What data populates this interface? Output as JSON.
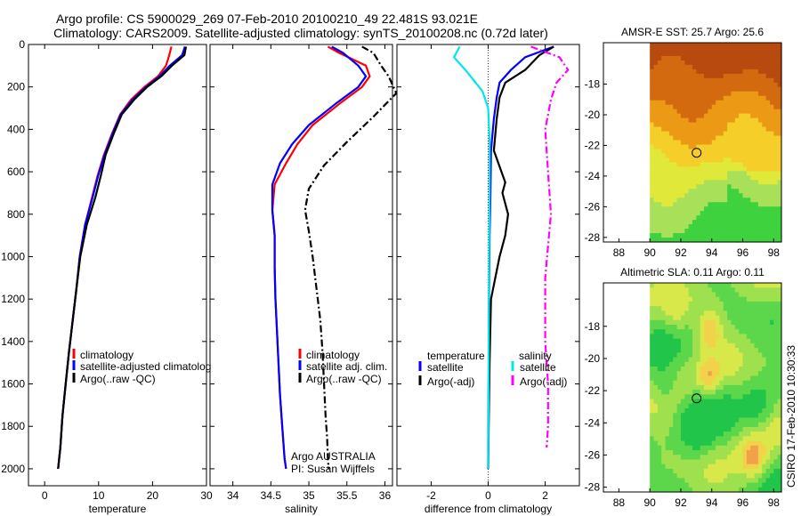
{
  "title": {
    "line1": "Argo profile: CS 5900029_269 07-Feb-2010 20100210_49 22.481S 93.021E",
    "line2": "Climatology: CARS2009. Satellite-adjusted climatology: synTS_20100208.nc (0.72d later)"
  },
  "credit": "CSIRO 17-Feb-2010 10:30:33",
  "chart_data": [
    {
      "id": "temperature",
      "type": "line",
      "xlabel": "temperature",
      "ylabel": "",
      "xlim": [
        -3,
        30
      ],
      "ylim": [
        0,
        2080
      ],
      "y_inverted": true,
      "xticks": [
        0,
        10,
        20,
        30
      ],
      "yticks": [
        0,
        200,
        400,
        600,
        800,
        1000,
        1200,
        1400,
        1600,
        1800,
        2000
      ],
      "legend": {
        "entries": [
          "climatology",
          "satellite-adjusted climatolog",
          "Argo(..raw -QC)"
        ],
        "position": "lower-right"
      },
      "series": [
        {
          "name": "climatology",
          "color": "#ff0000",
          "x": [
            23.5,
            23.1,
            22.5,
            21.0,
            18.5,
            16.0,
            14.0,
            12.5,
            11.0,
            9.8,
            8.8,
            7.5,
            6.5,
            5.9,
            5.2,
            4.5,
            3.9,
            3.3,
            2.9,
            2.5
          ],
          "y": [
            10,
            50,
            100,
            150,
            200,
            260,
            330,
            420,
            520,
            620,
            720,
            850,
            1000,
            1150,
            1300,
            1450,
            1600,
            1750,
            1900,
            2000
          ]
        },
        {
          "name": "satellite-adjusted climatolog",
          "color": "#0000ff",
          "x": [
            26.0,
            25.5,
            23.2,
            21.3,
            18.8,
            16.3,
            14.1,
            12.6,
            11.1,
            9.9,
            8.9,
            7.5,
            6.5,
            5.9,
            5.2,
            4.5,
            3.9,
            3.3,
            2.9,
            2.5
          ],
          "y": [
            10,
            50,
            100,
            150,
            200,
            260,
            330,
            420,
            520,
            620,
            720,
            850,
            1000,
            1150,
            1300,
            1450,
            1600,
            1750,
            1900,
            2000
          ]
        },
        {
          "name": "Argo(..raw -QC)",
          "color": "#000000",
          "x": [
            26.2,
            25.9,
            23.6,
            21.6,
            19.0,
            16.6,
            14.3,
            12.8,
            11.3,
            10.4,
            9.4,
            7.8,
            6.6,
            5.9,
            5.2,
            4.5,
            3.9,
            3.3,
            2.9,
            2.5
          ],
          "y": [
            10,
            50,
            100,
            150,
            200,
            260,
            330,
            420,
            520,
            620,
            720,
            850,
            1000,
            1150,
            1300,
            1450,
            1600,
            1750,
            1900,
            2000
          ]
        }
      ]
    },
    {
      "id": "salinity",
      "type": "line",
      "xlabel": "salinity",
      "ylabel": "",
      "xlim": [
        33.7,
        36.1
      ],
      "ylim": [
        0,
        2080
      ],
      "y_inverted": true,
      "xticks": [
        34,
        34.5,
        35,
        35.5,
        36
      ],
      "legend": {
        "entries": [
          "climatology",
          "satellite adj. clim.",
          "Argo(..raw -QC)"
        ],
        "position": "lower-right"
      },
      "annotation": [
        "Argo AUSTRALIA",
        "PI: Susan Wijffels"
      ],
      "series": [
        {
          "name": "climatology",
          "color": "#ff0000",
          "x": [
            35.25,
            35.4,
            35.75,
            35.8,
            35.7,
            35.4,
            35.05,
            34.85,
            34.7,
            34.55,
            34.52,
            34.55,
            34.55,
            34.56,
            34.58,
            34.6,
            34.62,
            34.65,
            34.68,
            34.7
          ],
          "y": [
            10,
            40,
            100,
            150,
            200,
            280,
            380,
            470,
            560,
            660,
            780,
            900,
            1050,
            1200,
            1350,
            1500,
            1650,
            1800,
            1950,
            2000
          ]
        },
        {
          "name": "satellite adj. clim.",
          "color": "#0000ff",
          "x": [
            35.3,
            35.45,
            35.65,
            35.75,
            35.65,
            35.35,
            35.0,
            34.78,
            34.62,
            34.52,
            34.52,
            34.55,
            34.55,
            34.56,
            34.58,
            34.6,
            34.62,
            34.65,
            34.68,
            34.7
          ],
          "y": [
            10,
            40,
            100,
            150,
            200,
            280,
            380,
            470,
            560,
            660,
            780,
            900,
            1050,
            1200,
            1350,
            1500,
            1650,
            1800,
            1950,
            2000
          ]
        },
        {
          "name": "Argo(..raw -QC)",
          "color": "#000000",
          "dash": true,
          "x": [
            35.7,
            35.85,
            35.95,
            36.05,
            36.15,
            35.85,
            35.5,
            35.2,
            35.0,
            34.95,
            35.0,
            35.05,
            35.1,
            35.15,
            35.18,
            35.2,
            35.22,
            35.24,
            35.25,
            35.26
          ],
          "y": [
            10,
            40,
            100,
            150,
            230,
            340,
            460,
            570,
            680,
            780,
            880,
            1000,
            1150,
            1300,
            1450,
            1600,
            1750,
            1850,
            1950,
            2000
          ]
        }
      ]
    },
    {
      "id": "difference",
      "type": "line",
      "xlabel": "difference from climatology",
      "ylabel": "",
      "xlim": [
        -3.2,
        3.2
      ],
      "ylim": [
        0,
        2080
      ],
      "y_inverted": true,
      "xticks": [
        -2,
        0,
        2
      ],
      "legend": {
        "entries": [
          "temperature",
          "satellite",
          "Argo(-adj)",
          "salinity",
          "satellite",
          "Argo(-adj)"
        ],
        "position": "lower"
      },
      "series": [
        {
          "name": "temperature satellite",
          "color": "#0000ff",
          "x": [
            2.3,
            1.3,
            0.8,
            0.4,
            0.3,
            0.2,
            0.1,
            0.08,
            0.05,
            0.03,
            0.02,
            0.01,
            0.0,
            0.0
          ],
          "y": [
            10,
            60,
            120,
            180,
            250,
            350,
            500,
            700,
            900,
            1200,
            1500,
            1700,
            1900,
            2000
          ]
        },
        {
          "name": "temperature Argo(-adj)",
          "color": "#000000",
          "x": [
            2.3,
            1.8,
            1.3,
            0.6,
            0.4,
            0.3,
            0.2,
            0.6,
            0.5,
            0.7,
            0.6,
            0.4,
            0.1,
            0.05,
            0.02,
            0.0
          ],
          "y": [
            10,
            50,
            120,
            180,
            250,
            350,
            500,
            650,
            700,
            800,
            900,
            1000,
            1200,
            1500,
            1800,
            2000
          ]
        },
        {
          "name": "salinity satellite",
          "color": "#00e5ee",
          "x": [
            -1.0,
            -1.2,
            -0.8,
            -0.5,
            -0.2,
            0.0,
            0.05,
            0.05,
            0.03,
            0.02,
            0.01,
            0.0
          ],
          "y": [
            10,
            60,
            120,
            170,
            220,
            300,
            450,
            700,
            1000,
            1400,
            1800,
            2000
          ]
        },
        {
          "name": "salinity Argo(-adj)",
          "color": "#ff00ff",
          "dash": true,
          "x": [
            1.5,
            2.5,
            2.8,
            2.4,
            2.2,
            2.0,
            2.1,
            2.2,
            2.1,
            2.0,
            2.0,
            2.1,
            2.1,
            2.05
          ],
          "y": [
            10,
            60,
            120,
            180,
            260,
            400,
            600,
            800,
            950,
            1100,
            1400,
            1600,
            1800,
            1900
          ]
        }
      ]
    },
    {
      "id": "sst-map",
      "type": "heatmap",
      "title": "AMSR-E SST: 25.7  Argo: 25.6",
      "xlim": [
        87,
        98.5
      ],
      "ylim": [
        -28.3,
        -15.3
      ],
      "xticks": [
        88,
        90,
        92,
        94,
        96,
        98
      ],
      "yticks": [
        -18,
        -20,
        -22,
        -24,
        -26,
        -28
      ],
      "argo_marker": {
        "lon": 93.02,
        "lat": -22.48
      },
      "palette": [
        "#b84a10",
        "#d46a10",
        "#ec9a16",
        "#f6ce2a",
        "#e0e83a",
        "#a8e05a",
        "#3ed23e"
      ],
      "data_extent": {
        "lon": [
          90,
          98.5
        ],
        "lat": [
          -28.3,
          -15.3
        ]
      }
    },
    {
      "id": "sla-map",
      "type": "heatmap",
      "title": "Altimetric SLA: 0.11  Argo: 0.11",
      "xlim": [
        87,
        98.5
      ],
      "ylim": [
        -28.3,
        -15.3
      ],
      "xticks": [
        88,
        90,
        92,
        94,
        96,
        98
      ],
      "yticks": [
        -18,
        -20,
        -22,
        -24,
        -26,
        -28
      ],
      "argo_marker": {
        "lon": 93.02,
        "lat": -22.48
      },
      "palette": [
        "#21c54a",
        "#5cd64a",
        "#9fe04e",
        "#d8e84a",
        "#f2d24a",
        "#f0a14a"
      ],
      "data_extent": {
        "lon": [
          90,
          98.5
        ],
        "lat": [
          -28.3,
          -15.3
        ]
      }
    }
  ]
}
